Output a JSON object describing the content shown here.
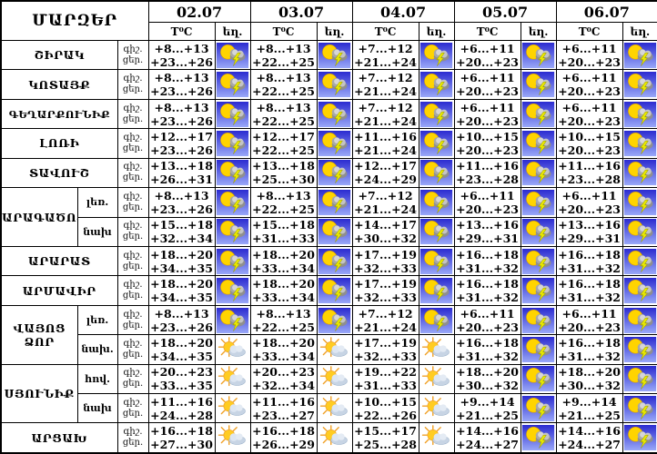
{
  "table": {
    "corner_header": "ՄԱՐԶԵՐ",
    "temp_header": "T⁰C",
    "weather_header": "եղ.",
    "night_label": "գիշ.",
    "day_label": "ցեր.",
    "dates": [
      "02.07",
      "03.07",
      "04.07",
      "05.07",
      "06.07"
    ],
    "icon_legend": {
      "thunder": "sun-cloud-lightning-icon",
      "suncloud": "sun-cloud-icon"
    },
    "colors": {
      "border": "#000000",
      "background": "#ffffff",
      "thunder_sky_top": "#2b2bd0",
      "thunder_sky_bottom": "#9aa8f8",
      "sun": "#ffd400",
      "lightning": "#e8e800",
      "cloud_gray": "#9a9a9a",
      "cloud_light": "#cdd9e8"
    },
    "rows": [
      {
        "region": "ՇԻՐԱԿ",
        "rowspan": 1,
        "sub": null,
        "cells": [
          {
            "night": "+8...+13",
            "day": "+23...+26",
            "icon": "thunder"
          },
          {
            "night": "+8...+13",
            "day": "+22...+25",
            "icon": "thunder"
          },
          {
            "night": "+7...+12",
            "day": "+21...+24",
            "icon": "thunder"
          },
          {
            "night": "+6...+11",
            "day": "+20...+23",
            "icon": "thunder"
          },
          {
            "night": "+6...+11",
            "day": "+20...+23",
            "icon": "thunder"
          }
        ]
      },
      {
        "region": "ԿՈՏԱՅՔ",
        "rowspan": 1,
        "sub": null,
        "cells": [
          {
            "night": "+8...+13",
            "day": "+23...+26",
            "icon": "thunder"
          },
          {
            "night": "+8...+13",
            "day": "+22...+25",
            "icon": "thunder"
          },
          {
            "night": "+7...+12",
            "day": "+21...+24",
            "icon": "thunder"
          },
          {
            "night": "+6...+11",
            "day": "+20...+23",
            "icon": "thunder"
          },
          {
            "night": "+6...+11",
            "day": "+20...+23",
            "icon": "thunder"
          }
        ]
      },
      {
        "region": "ԳԵՂԱՐՔՈՒՆԻՔ",
        "rowspan": 1,
        "sub": null,
        "cells": [
          {
            "night": "+8...+13",
            "day": "+23...+26",
            "icon": "thunder"
          },
          {
            "night": "+8...+13",
            "day": "+22...+25",
            "icon": "thunder"
          },
          {
            "night": "+7...+12",
            "day": "+21...+24",
            "icon": "thunder"
          },
          {
            "night": "+6...+11",
            "day": "+20...+23",
            "icon": "thunder"
          },
          {
            "night": "+6...+11",
            "day": "+20...+23",
            "icon": "thunder"
          }
        ]
      },
      {
        "region": "ԼՈՌԻ",
        "rowspan": 1,
        "sub": null,
        "cells": [
          {
            "night": "+12...+17",
            "day": "+23...+26",
            "icon": "thunder"
          },
          {
            "night": "+12...+17",
            "day": "+22...+25",
            "icon": "thunder"
          },
          {
            "night": "+11...+16",
            "day": "+21...+24",
            "icon": "thunder"
          },
          {
            "night": "+10...+15",
            "day": "+20...+23",
            "icon": "thunder"
          },
          {
            "night": "+10...+15",
            "day": "+20...+23",
            "icon": "thunder"
          }
        ]
      },
      {
        "region": "ՏԱՎՈՒՇ",
        "rowspan": 1,
        "sub": null,
        "cells": [
          {
            "night": "+13...+18",
            "day": "+26...+31",
            "icon": "thunder"
          },
          {
            "night": "+13...+18",
            "day": "+25...+30",
            "icon": "thunder"
          },
          {
            "night": "+12...+17",
            "day": "+24...+29",
            "icon": "thunder"
          },
          {
            "night": "+11...+16",
            "day": "+23...+28",
            "icon": "thunder"
          },
          {
            "night": "+11...+16",
            "day": "+23...+28",
            "icon": "thunder"
          }
        ]
      },
      {
        "region": "ԱՐԱԳԱԾՈՏՆ",
        "rowspan": 2,
        "sub": "լեռ.",
        "cells": [
          {
            "night": "+8...+13",
            "day": "+23...+26",
            "icon": "thunder"
          },
          {
            "night": "+8...+13",
            "day": "+22...+25",
            "icon": "thunder"
          },
          {
            "night": "+7...+12",
            "day": "+21...+24",
            "icon": "thunder"
          },
          {
            "night": "+6...+11",
            "day": "+20...+23",
            "icon": "thunder"
          },
          {
            "night": "+6...+11",
            "day": "+20...+23",
            "icon": "thunder"
          }
        ]
      },
      {
        "region": null,
        "rowspan": 0,
        "sub": "նախ",
        "cells": [
          {
            "night": "+15...+18",
            "day": "+32...+34",
            "icon": "thunder"
          },
          {
            "night": "+15...+18",
            "day": "+31...+33",
            "icon": "thunder"
          },
          {
            "night": "+14...+17",
            "day": "+30...+32",
            "icon": "thunder"
          },
          {
            "night": "+13...+16",
            "day": "+29...+31",
            "icon": "thunder"
          },
          {
            "night": "+13...+16",
            "day": "+29...+31",
            "icon": "thunder"
          }
        ]
      },
      {
        "region": "ԱՐԱՐԱՏ",
        "rowspan": 1,
        "sub": null,
        "cells": [
          {
            "night": "+18...+20",
            "day": "+34...+35",
            "icon": "thunder"
          },
          {
            "night": "+18...+20",
            "day": "+33...+34",
            "icon": "thunder"
          },
          {
            "night": "+17...+19",
            "day": "+32...+33",
            "icon": "thunder"
          },
          {
            "night": "+16...+18",
            "day": "+31...+32",
            "icon": "thunder"
          },
          {
            "night": "+16...+18",
            "day": "+31...+32",
            "icon": "thunder"
          }
        ]
      },
      {
        "region": "ԱՐՄԱՎԻՐ",
        "rowspan": 1,
        "sub": null,
        "cells": [
          {
            "night": "+18...+20",
            "day": "+34...+35",
            "icon": "thunder"
          },
          {
            "night": "+18...+20",
            "day": "+33...+34",
            "icon": "thunder"
          },
          {
            "night": "+17...+19",
            "day": "+32...+33",
            "icon": "thunder"
          },
          {
            "night": "+16...+18",
            "day": "+31...+32",
            "icon": "thunder"
          },
          {
            "night": "+16...+18",
            "day": "+31...+32",
            "icon": "thunder"
          }
        ]
      },
      {
        "region": "ՎԱՅՈՑ ՁՈՐ",
        "rowspan": 2,
        "sub": "լեռ.",
        "cells": [
          {
            "night": "+8...+13",
            "day": "+23...+26",
            "icon": "thunder"
          },
          {
            "night": "+8...+13",
            "day": "+22...+25",
            "icon": "thunder"
          },
          {
            "night": "+7...+12",
            "day": "+21...+24",
            "icon": "thunder"
          },
          {
            "night": "+6...+11",
            "day": "+20...+23",
            "icon": "thunder"
          },
          {
            "night": "+6...+11",
            "day": "+20...+23",
            "icon": "thunder"
          }
        ]
      },
      {
        "region": null,
        "rowspan": 0,
        "sub": "նախ.",
        "cells": [
          {
            "night": "+18...+20",
            "day": "+34...+35",
            "icon": "suncloud"
          },
          {
            "night": "+18...+20",
            "day": "+33...+34",
            "icon": "suncloud"
          },
          {
            "night": "+17...+19",
            "day": "+32...+33",
            "icon": "suncloud"
          },
          {
            "night": "+16...+18",
            "day": "+31...+32",
            "icon": "thunder"
          },
          {
            "night": "+16...+18",
            "day": "+31...+32",
            "icon": "thunder"
          }
        ]
      },
      {
        "region": "ՍՅՈՒՆԻՔ",
        "rowspan": 2,
        "sub": "հով.",
        "cells": [
          {
            "night": "+20...+23",
            "day": "+33...+35",
            "icon": "suncloud"
          },
          {
            "night": "+20...+23",
            "day": "+32...+34",
            "icon": "suncloud"
          },
          {
            "night": "+19...+22",
            "day": "+31...+33",
            "icon": "suncloud"
          },
          {
            "night": "+18...+20",
            "day": "+30...+32",
            "icon": "thunder"
          },
          {
            "night": "+18...+20",
            "day": "+30...+32",
            "icon": "thunder"
          }
        ]
      },
      {
        "region": null,
        "rowspan": 0,
        "sub": "նախ",
        "cells": [
          {
            "night": "+11...+16",
            "day": "+24...+28",
            "icon": "suncloud"
          },
          {
            "night": "+11...+16",
            "day": "+23...+27",
            "icon": "suncloud"
          },
          {
            "night": "+10...+15",
            "day": "+22...+26",
            "icon": "suncloud"
          },
          {
            "night": "+9...+14",
            "day": "+21...+25",
            "icon": "thunder"
          },
          {
            "night": "+9...+14",
            "day": "+21...+25",
            "icon": "thunder"
          }
        ]
      },
      {
        "region": "ԱՐՑԱԽ",
        "rowspan": 1,
        "sub": null,
        "cells": [
          {
            "night": "+16...+18",
            "day": "+27...+30",
            "icon": "suncloud"
          },
          {
            "night": "+16...+18",
            "day": "+26...+29",
            "icon": "suncloud"
          },
          {
            "night": "+15...+17",
            "day": "+25...+28",
            "icon": "suncloud"
          },
          {
            "night": "+14...+16",
            "day": "+24...+27",
            "icon": "thunder"
          },
          {
            "night": "+14...+16",
            "day": "+24...+27",
            "icon": "thunder"
          }
        ]
      }
    ]
  }
}
